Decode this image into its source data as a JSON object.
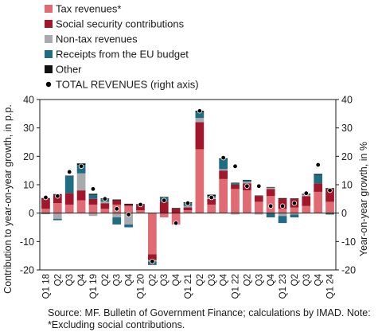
{
  "chart_data": {
    "type": "bar",
    "stacked": true,
    "legend": {
      "position": "top-left",
      "entries": [
        {
          "key": "tax",
          "label": "Tax revenues*",
          "color": "#e06b73",
          "shape": "square"
        },
        {
          "key": "social",
          "label": "Social security contributions",
          "color": "#a1162a",
          "shape": "square"
        },
        {
          "key": "nontax",
          "label": "Non-tax revenues",
          "color": "#a8aaad",
          "shape": "square"
        },
        {
          "key": "eu",
          "label": "Receipts from the EU budget",
          "color": "#1f6d82",
          "shape": "square"
        },
        {
          "key": "other",
          "label": "Other",
          "color": "#111111",
          "shape": "square"
        },
        {
          "key": "total",
          "label": "TOTAL REVENUES (right axis)",
          "color": "#000000",
          "shape": "dot"
        }
      ]
    },
    "categories": [
      "Q1 18",
      "Q2",
      "Q3",
      "Q4",
      "Q1 19",
      "Q2",
      "Q3",
      "Q4",
      "Q1 20",
      "Q2",
      "Q3",
      "Q4",
      "Q1 21",
      "Q2",
      "Q3",
      "Q4",
      "Q1 22",
      "Q2",
      "Q3",
      "Q4",
      "Q1 23",
      "Q2",
      "Q3",
      "Q4",
      "Q1 24"
    ],
    "series": [
      {
        "name": "Tax revenues*",
        "key": "tax",
        "values": [
          1.5,
          3.5,
          3.0,
          4.5,
          3.0,
          1.5,
          3.0,
          2.5,
          1.0,
          -14.5,
          -1.5,
          -4.0,
          1.0,
          22.5,
          3.0,
          12.0,
          8.5,
          8.0,
          4.0,
          6.0,
          1.5,
          2.0,
          2.5,
          7.5,
          4.0
        ]
      },
      {
        "name": "Social security contributions",
        "key": "social",
        "values": [
          3.5,
          3.0,
          4.0,
          3.5,
          2.0,
          2.0,
          1.5,
          0.5,
          2.0,
          -2.0,
          4.0,
          1.5,
          1.0,
          9.5,
          2.0,
          3.0,
          1.5,
          2.5,
          2.0,
          2.5,
          3.5,
          3.0,
          3.5,
          3.0,
          4.5
        ]
      },
      {
        "name": "Non-tax revenues",
        "key": "nontax",
        "values": [
          0.0,
          -2.0,
          0.0,
          6.0,
          -1.0,
          0.5,
          -1.5,
          -4.0,
          0.0,
          -0.5,
          0.0,
          0.0,
          0.5,
          1.5,
          0.5,
          0.5,
          -0.5,
          0.5,
          -0.5,
          0.5,
          -1.0,
          -0.5,
          0.5,
          0.0,
          0.0
        ]
      },
      {
        "name": "Receipts from the EU budget",
        "key": "eu",
        "values": [
          -0.3,
          -0.5,
          6.0,
          3.0,
          1.5,
          1.0,
          -2.5,
          -1.0,
          0.0,
          -1.0,
          1.5,
          0.0,
          1.0,
          2.0,
          0.5,
          3.5,
          0.5,
          0.5,
          0.0,
          -1.5,
          -2.5,
          -1.0,
          0.0,
          3.0,
          -0.5
        ]
      },
      {
        "name": "Other",
        "key": "other",
        "values": [
          0.3,
          0.2,
          0.2,
          0.5,
          0.3,
          0.2,
          0.3,
          0.3,
          0.2,
          -0.2,
          0.2,
          0.3,
          0.3,
          0.5,
          0.5,
          0.3,
          0.2,
          0.2,
          0.2,
          0.2,
          0.3,
          0.2,
          0.3,
          0.3,
          0.3
        ]
      }
    ],
    "total_revenues": {
      "name": "TOTAL REVENUES (right axis)",
      "axis": "right",
      "values": [
        5.5,
        6.0,
        14.5,
        16.5,
        8.5,
        5.0,
        1.5,
        -0.5,
        3.0,
        -17.0,
        4.5,
        -3.5,
        3.5,
        36.0,
        5.5,
        19.5,
        16.5,
        9.5,
        9.5,
        2.5,
        2.5,
        3.5,
        7.0,
        17.0,
        8.0
      ]
    },
    "yaxis_left": {
      "label": "Contribution to year-on-year growth, in p.p.",
      "min": -20,
      "max": 40,
      "ticks": [
        -20,
        -10,
        0,
        10,
        20,
        30,
        40
      ]
    },
    "yaxis_right": {
      "label": "Year-on-year growth, in %",
      "min": -20,
      "max": 40,
      "ticks": [
        -20,
        -10,
        0,
        10,
        20,
        30,
        40
      ]
    },
    "grid": false
  },
  "source_note": "Source: MF. Bulletin of Government Finance; calculations by IMAD. Note: *Excluding social contributions."
}
